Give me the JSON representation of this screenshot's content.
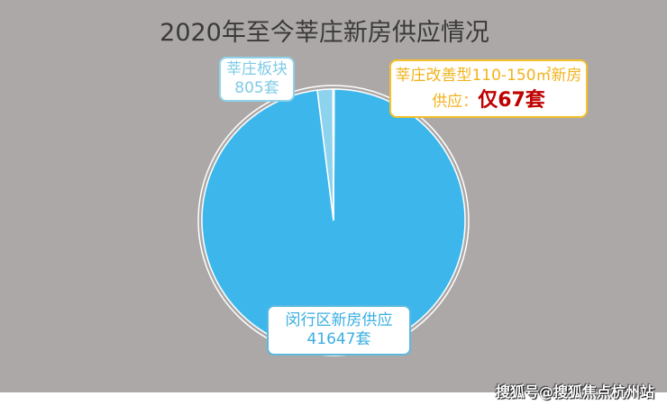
{
  "chart_data": {
    "type": "pie",
    "title": "2020年至今莘庄新房供应情况",
    "slices": [
      {
        "label": "闵行区新房供应",
        "value": 41647,
        "value_text": "41647套",
        "color": "#3db7eb"
      },
      {
        "label": "莘庄板块",
        "value": 805,
        "value_text": "805套",
        "color": "#8dd3ee"
      },
      {
        "label": "莘庄改善型110-150㎡新房供应：",
        "value": 67,
        "value_text": "仅67套",
        "color": "#f5c02a"
      }
    ]
  },
  "watermark": "搜狐号@搜狐焦点杭州站"
}
